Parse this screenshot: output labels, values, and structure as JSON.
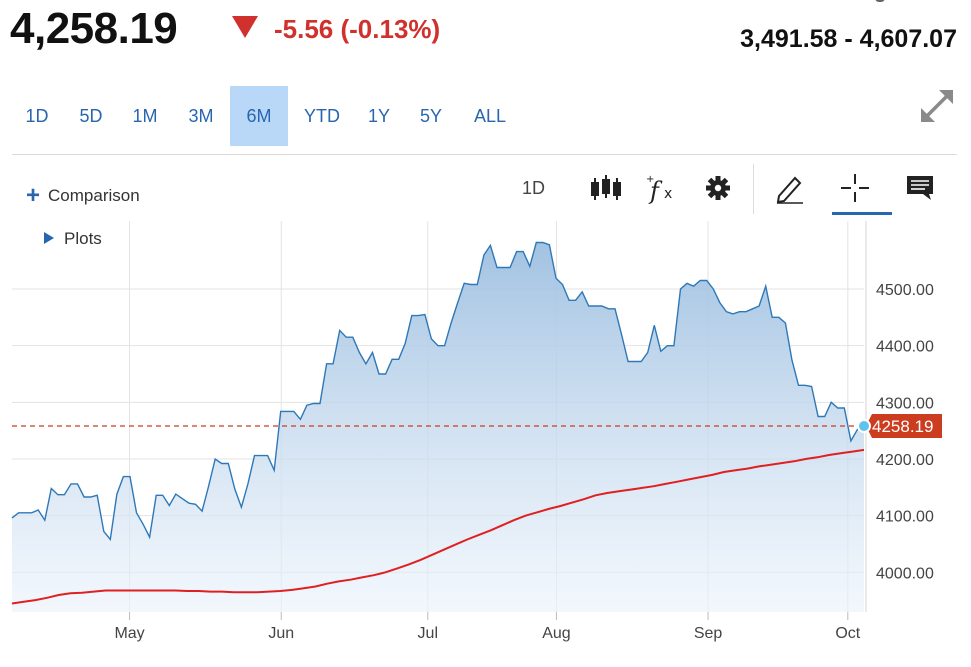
{
  "header": {
    "price": "4,258.19",
    "change": "-5.56 (-0.13%)",
    "range": "3,491.58 - 4,607.07"
  },
  "timeframes": [
    "1D",
    "5D",
    "1M",
    "3M",
    "6M",
    "YTD",
    "1Y",
    "5Y",
    "ALL"
  ],
  "active_timeframe": "6M",
  "toolbar": {
    "comparison_label": "Comparison",
    "plots_label": "Plots",
    "interval_label": "1D"
  },
  "colors": {
    "accent": "#2866b0",
    "negative": "#d0312d",
    "price_line": "#2e78b7",
    "moving_average": "#e02020",
    "last_price_badge": "#cc3d1f"
  },
  "icons": [
    "expand-icon",
    "candlestick-icon",
    "function-icon",
    "gear-icon",
    "pencil-icon",
    "crosshair-icon",
    "comment-icon"
  ],
  "chart_data": {
    "type": "area",
    "x_ticks": [
      "May",
      "Jun",
      "Jul",
      "Aug",
      "Sep",
      "Oct"
    ],
    "y_ticks": [
      "4000.00",
      "4100.00",
      "4200.00",
      "4300.00",
      "4400.00",
      "4500.00"
    ],
    "ylim": [
      3930,
      4620
    ],
    "grid": true,
    "last_price_label": "4258.19",
    "last_price": 4258.19,
    "series": [
      {
        "kind": "price",
        "values": [
          4096,
          4105,
          4105,
          4105,
          4110,
          4092,
          4148,
          4137,
          4137,
          4156,
          4156,
          4133,
          4133,
          4136,
          4072,
          4058,
          4138,
          4169,
          4169,
          4105,
          4085,
          4062,
          4136,
          4136,
          4118,
          4138,
          4130,
          4122,
          4120,
          4108,
          4152,
          4200,
          4192,
          4192,
          4147,
          4115,
          4156,
          4206,
          4206,
          4206,
          4180,
          4284,
          4284,
          4284,
          4270,
          4295,
          4298,
          4298,
          4368,
          4368,
          4427,
          4415,
          4415,
          4388,
          4368,
          4388,
          4350,
          4350,
          4376,
          4376,
          4404,
          4453,
          4453,
          4455,
          4412,
          4400,
          4400,
          4440,
          4476,
          4510,
          4508,
          4508,
          4560,
          4577,
          4538,
          4538,
          4538,
          4566,
          4566,
          4540,
          4582,
          4582,
          4578,
          4519,
          4508,
          4480,
          4480,
          4495,
          4470,
          4470,
          4470,
          4465,
          4465,
          4420,
          4372,
          4372,
          4372,
          4388,
          4436,
          4390,
          4400,
          4400,
          4500,
          4510,
          4505,
          4515,
          4515,
          4500,
          4476,
          4460,
          4456,
          4460,
          4460,
          4465,
          4470,
          4505,
          4450,
          4450,
          4440,
          4375,
          4330,
          4330,
          4328,
          4275,
          4275,
          4300,
          4290,
          4290,
          4232,
          4252,
          4258.19
        ]
      },
      {
        "kind": "moving-average",
        "values": [
          3945,
          3948,
          3951,
          3955,
          3960,
          3963,
          3964,
          3966,
          3968,
          3968,
          3968,
          3968,
          3968,
          3968,
          3968,
          3967,
          3967,
          3966,
          3966,
          3965,
          3965,
          3965,
          3966,
          3967,
          3969,
          3972,
          3975,
          3980,
          3984,
          3987,
          3991,
          3995,
          4000,
          4007,
          4014,
          4022,
          4031,
          4040,
          4049,
          4058,
          4066,
          4074,
          4083,
          4092,
          4100,
          4106,
          4112,
          4117,
          4123,
          4129,
          4136,
          4140,
          4143,
          4146,
          4149,
          4152,
          4156,
          4160,
          4164,
          4168,
          4172,
          4177,
          4180,
          4183,
          4187,
          4190,
          4193,
          4196,
          4200,
          4203,
          4207,
          4210,
          4213,
          4216
        ]
      }
    ]
  }
}
